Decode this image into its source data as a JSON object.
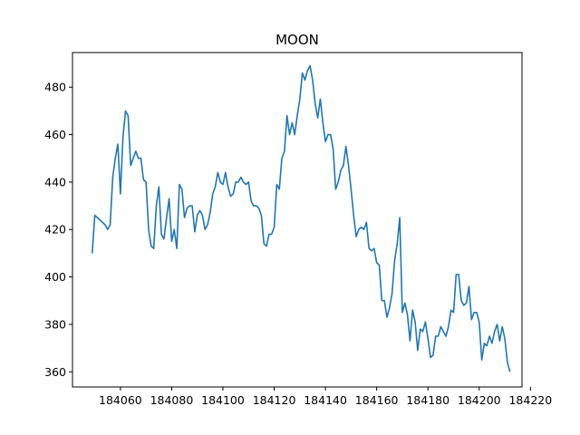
{
  "chart_data": {
    "type": "line",
    "title": "MOON",
    "xlabel": "",
    "ylabel": "",
    "xlim": [
      184041.3,
      184216.7
    ],
    "ylim": [
      353.6,
      494.6
    ],
    "xticks": [
      184060,
      184080,
      184100,
      184120,
      184140,
      184160,
      184180,
      184200,
      184220
    ],
    "yticks": [
      360,
      380,
      400,
      420,
      440,
      460,
      480
    ],
    "grid": false,
    "series": [
      {
        "color": "#1f77b4",
        "x": [
          184049,
          184050,
          184051,
          184052,
          184053,
          184054,
          184055,
          184056,
          184057,
          184058,
          184059,
          184060,
          184061,
          184062,
          184063,
          184064,
          184065,
          184066,
          184067,
          184068,
          184069,
          184070,
          184071,
          184072,
          184073,
          184074,
          184075,
          184076,
          184077,
          184078,
          184079,
          184080,
          184081,
          184082,
          184083,
          184084,
          184085,
          184086,
          184087,
          184088,
          184089,
          184090,
          184091,
          184092,
          184093,
          184094,
          184095,
          184096,
          184097,
          184098,
          184099,
          184100,
          184101,
          184102,
          184103,
          184104,
          184105,
          184106,
          184107,
          184108,
          184109,
          184110,
          184111,
          184112,
          184113,
          184114,
          184115,
          184116,
          184117,
          184118,
          184119,
          184120,
          184121,
          184122,
          184123,
          184124,
          184125,
          184126,
          184127,
          184128,
          184129,
          184130,
          184131,
          184132,
          184133,
          184134,
          184135,
          184136,
          184137,
          184138,
          184139,
          184140,
          184141,
          184142,
          184143,
          184144,
          184145,
          184146,
          184147,
          184148,
          184149,
          184150,
          184151,
          184152,
          184153,
          184154,
          184155,
          184156,
          184157,
          184158,
          184159,
          184160,
          184161,
          184162,
          184163,
          184164,
          184165,
          184166,
          184167,
          184168,
          184169,
          184170,
          184171,
          184172,
          184173,
          184174,
          184175,
          184176,
          184177,
          184178,
          184179,
          184180,
          184181,
          184182,
          184183,
          184184,
          184185,
          184186,
          184187,
          184188,
          184189,
          184190,
          184191,
          184192,
          184193,
          184194,
          184195,
          184196,
          184197,
          184198,
          184199,
          184200,
          184201,
          184202,
          184203,
          184204,
          184205,
          184206,
          184207,
          184208,
          184209,
          184210,
          184211,
          184212
        ],
        "y": [
          410,
          426,
          425,
          424,
          423,
          422,
          420,
          422,
          442,
          450,
          456,
          435,
          459,
          470,
          468,
          447,
          450,
          453,
          450,
          450,
          441,
          440,
          420,
          413,
          412,
          430,
          438,
          418,
          416,
          425,
          433,
          415,
          420,
          412,
          439,
          437,
          425,
          429,
          430,
          430,
          419,
          426,
          428,
          426,
          420,
          422,
          427,
          435,
          438,
          444,
          440,
          439,
          444,
          438,
          434,
          435,
          440,
          440,
          442,
          440,
          439,
          440,
          432,
          430,
          430,
          429,
          426,
          414,
          413,
          418,
          418,
          421,
          439,
          437,
          450,
          453,
          468,
          460,
          465,
          460,
          468,
          475,
          486,
          483,
          487,
          489,
          483,
          473,
          467,
          475,
          465,
          457,
          460,
          460,
          454,
          437,
          440,
          445,
          447,
          455,
          447,
          437,
          426,
          417,
          420,
          421,
          420,
          423,
          412,
          411,
          412,
          406,
          405,
          390,
          390,
          383,
          387,
          393,
          407,
          414,
          425,
          385,
          389,
          384,
          373,
          386,
          381,
          369,
          378,
          377,
          381,
          374,
          366,
          367,
          375,
          375,
          379,
          377,
          375,
          379,
          386,
          385,
          401,
          401,
          390,
          388,
          389,
          396,
          382,
          385,
          385,
          381,
          365,
          372,
          371,
          375,
          372,
          377,
          380,
          373,
          379,
          374,
          364,
          360
        ]
      }
    ]
  }
}
